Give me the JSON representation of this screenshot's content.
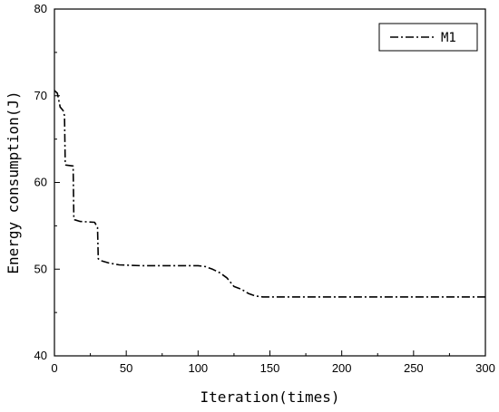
{
  "chart_data": {
    "type": "line",
    "title": "",
    "xlabel": "Iteration(times)",
    "ylabel": "Energy consumption(J)",
    "xlim": [
      0,
      300
    ],
    "ylim": [
      40,
      80
    ],
    "xticks": [
      0,
      50,
      100,
      150,
      200,
      250,
      300
    ],
    "yticks": [
      40,
      50,
      60,
      70,
      80
    ],
    "grid": false,
    "legend_position": "top-right",
    "series": [
      {
        "name": "M1",
        "color": "#000000",
        "line_style": "dash-dot",
        "x": [
          0,
          2,
          4,
          6,
          7,
          7.5,
          8,
          13,
          13.5,
          14,
          18,
          28,
          30,
          30.5,
          32,
          38,
          45,
          60,
          80,
          100,
          105,
          110,
          115,
          120,
          125,
          130,
          135,
          140,
          145,
          160,
          200,
          250,
          300
        ],
        "y": [
          70.6,
          70.3,
          68.7,
          68.3,
          67.7,
          62.1,
          62.0,
          61.9,
          55.8,
          55.7,
          55.5,
          55.4,
          54.8,
          51.2,
          51.0,
          50.7,
          50.5,
          50.4,
          50.4,
          50.4,
          50.3,
          50.0,
          49.6,
          49.0,
          48.0,
          47.7,
          47.2,
          46.9,
          46.8,
          46.8,
          46.8,
          46.8,
          46.8
        ]
      }
    ]
  }
}
